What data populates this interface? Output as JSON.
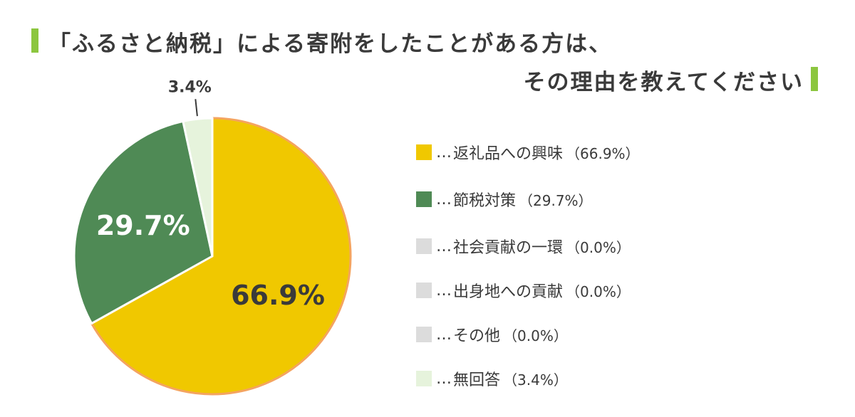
{
  "title": {
    "line1": "「ふるさと納税」による寄附をしたことがある方は、",
    "line2": "その理由を教えてください"
  },
  "colors": {
    "accent_bar": "#8cc63f",
    "slice_outline": "#f4a460"
  },
  "chart_data": {
    "type": "pie",
    "title": "「ふるさと納税」による寄附をしたことがある方は、その理由を教えてください",
    "unit": "%",
    "slices": [
      {
        "label": "返礼品への興味",
        "value": 66.9,
        "display": "66.9%",
        "legend": "（66.9%）",
        "color": "#f0c800"
      },
      {
        "label": "節税対策",
        "value": 29.7,
        "display": "29.7%",
        "legend": "（29.7%）",
        "color": "#4f8a55"
      },
      {
        "label": "社会貢献の一環",
        "value": 0.0,
        "display": "",
        "legend": "（0.0%）",
        "color": "#dcdcdc"
      },
      {
        "label": "出身地への貢献",
        "value": 0.0,
        "display": "",
        "legend": "（0.0%）",
        "color": "#dcdcdc"
      },
      {
        "label": "その他",
        "value": 0.0,
        "display": "",
        "legend": "（0.0%）",
        "color": "#dcdcdc"
      },
      {
        "label": "無回答",
        "value": 3.4,
        "display": "3.4%",
        "legend": "（3.4%）",
        "color": "#e6f3dc"
      }
    ],
    "legend_position": "right",
    "legend_separator": "…"
  }
}
